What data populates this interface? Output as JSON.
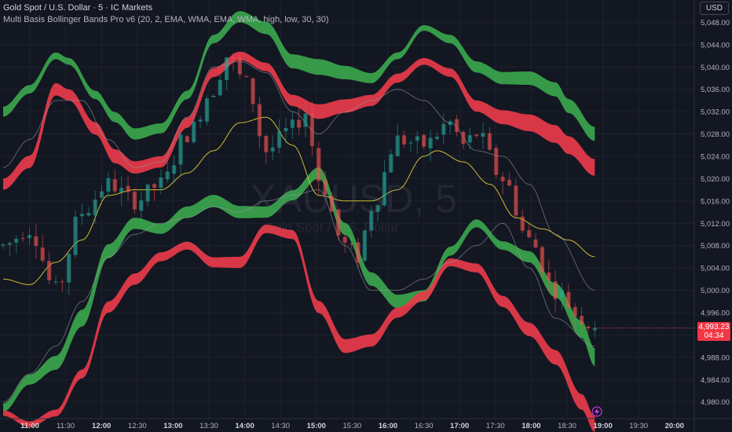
{
  "header": {
    "title": "Gold Spot / U.S. Dollar · 5 · IC Markets",
    "indicator": "Multi Basis Bollinger Bands Pro v6 (20, 2, EMA, WMA, EMA, WMA, high, low, 30, 30)"
  },
  "watermark": {
    "symbol": "XAUUSD, 5",
    "name": "Gold Spot / U.S. Dollar"
  },
  "currency_button": "USD",
  "price_tag": {
    "price": "4,993.23",
    "countdown": "04:34"
  },
  "colors": {
    "background": "#131722",
    "up": "#26a69a",
    "down": "#ef5350",
    "band_green": "#3aa64d",
    "band_red": "#e83b4a",
    "basis": "#d9c436",
    "inner": "#9598a1"
  },
  "chart_data": {
    "type": "candlestick",
    "title": "Gold Spot / U.S. Dollar · 5 · IC Markets",
    "ylim": [
      4977,
      5052
    ],
    "y_ticks": [
      "5,048.00",
      "5,044.00",
      "5,040.00",
      "5,036.00",
      "5,032.00",
      "5,028.00",
      "5,024.00",
      "5,020.00",
      "5,016.00",
      "5,012.00",
      "5,008.00",
      "5,004.00",
      "5,000.00",
      "4,996.00",
      "4,992.00",
      "4,988.00",
      "4,984.00",
      "4,980.00"
    ],
    "y_tick_values": [
      5048,
      5044,
      5040,
      5036,
      5032,
      5028,
      5024,
      5020,
      5016,
      5012,
      5008,
      5004,
      5000,
      4996,
      4992,
      4988,
      4984,
      4980
    ],
    "x_labels": [
      "11:00",
      "11:30",
      "12:00",
      "12:30",
      "13:00",
      "13:30",
      "14:00",
      "14:30",
      "15:00",
      "15:30",
      "16:00",
      "16:30",
      "17:00",
      "17:30",
      "18:00",
      "18:30",
      "19:00",
      "19:30",
      "20:00"
    ],
    "x_label_bold": [
      "11:00",
      "12:00",
      "13:00",
      "14:00",
      "15:00",
      "16:00",
      "17:00",
      "18:00",
      "19:00",
      "20:00"
    ],
    "last_price": 4993.23,
    "candle_count": 91,
    "candle_anchors": [
      [
        0,
        5008
      ],
      [
        4,
        5011
      ],
      [
        8,
        5000
      ],
      [
        12,
        5014
      ],
      [
        16,
        5019
      ],
      [
        20,
        5016
      ],
      [
        24,
        5019
      ],
      [
        28,
        5028
      ],
      [
        32,
        5036
      ],
      [
        34,
        5042
      ],
      [
        37,
        5037
      ],
      [
        40,
        5025
      ],
      [
        44,
        5029
      ],
      [
        46,
        5032
      ],
      [
        48,
        5020
      ],
      [
        52,
        5008
      ],
      [
        54,
        5006
      ],
      [
        56,
        5015
      ],
      [
        60,
        5027
      ],
      [
        64,
        5026
      ],
      [
        68,
        5030
      ],
      [
        70,
        5026
      ],
      [
        72,
        5028
      ],
      [
        76,
        5020
      ],
      [
        80,
        5009
      ],
      [
        84,
        5000
      ],
      [
        88,
        4995
      ],
      [
        90,
        4993
      ]
    ],
    "series": [
      {
        "name": "outer_upper",
        "style": "band",
        "color": "green",
        "x": [
          0,
          4,
          8,
          10,
          14,
          17,
          20,
          24,
          28,
          32,
          36,
          40,
          44,
          48,
          52,
          56,
          60,
          64,
          68,
          72,
          76,
          80,
          84,
          86,
          90
        ],
        "y": [
          5032,
          5036,
          5042,
          5041,
          5035,
          5031,
          5028,
          5029,
          5035,
          5045,
          5049,
          5047,
          5041,
          5040,
          5039,
          5038,
          5042,
          5047,
          5045,
          5040,
          5038,
          5038,
          5036,
          5033,
          5028
        ],
        "width": [
          1.8,
          1.5,
          1.2,
          1.2,
          1.5,
          1.8,
          2.0,
          1.8,
          1.5,
          1.5,
          2.0,
          2.2,
          2.5,
          2.8,
          2.4,
          1.8,
          1.2,
          1.0,
          1.5,
          2.0,
          2.2,
          2.4,
          2.5,
          2.5,
          2.5
        ]
      },
      {
        "name": "mid_upper",
        "style": "band",
        "color": "red",
        "x": [
          0,
          4,
          8,
          10,
          14,
          17,
          20,
          24,
          28,
          32,
          36,
          40,
          44,
          48,
          52,
          56,
          60,
          64,
          68,
          72,
          76,
          80,
          84,
          86,
          90
        ],
        "y": [
          5019,
          5023,
          5036,
          5035,
          5029,
          5024,
          5022,
          5023,
          5030,
          5039,
          5042,
          5040,
          5034,
          5032,
          5033,
          5034,
          5038,
          5041,
          5039,
          5033,
          5031,
          5030,
          5028,
          5026,
          5022
        ],
        "width": [
          2.0,
          2.2,
          2.2,
          2.0,
          2.2,
          2.5,
          2.2,
          2.0,
          1.8,
          1.6,
          1.5,
          1.5,
          2.0,
          2.6,
          2.4,
          2.0,
          1.6,
          1.2,
          1.5,
          2.0,
          2.5,
          3.0,
          3.2,
          3.2,
          3.0
        ]
      },
      {
        "name": "mid_lower",
        "style": "band",
        "color": "green",
        "x": [
          0,
          4,
          8,
          12,
          16,
          20,
          24,
          28,
          32,
          36,
          40,
          44,
          48,
          52,
          56,
          60,
          64,
          68,
          72,
          76,
          80,
          84,
          88,
          90
        ],
        "y": [
          4979,
          4984,
          4987,
          4995,
          5007,
          5012,
          5011,
          5014,
          5016,
          5014,
          5014,
          5017,
          5021,
          5011,
          5002,
          4998,
          4999,
          5007,
          5012,
          5008,
          5006,
          5000,
          4993,
          4988
        ],
        "width": [
          1.5,
          1.8,
          2.5,
          3.0,
          2.5,
          2.0,
          1.8,
          2.0,
          2.2,
          2.2,
          2.0,
          1.8,
          2.0,
          2.2,
          2.4,
          2.4,
          2.0,
          1.6,
          1.4,
          1.5,
          2.0,
          2.5,
          3.0,
          3.2
        ]
      },
      {
        "name": "outer_lower",
        "style": "band",
        "color": "red",
        "x": [
          0,
          4,
          8,
          12,
          16,
          20,
          24,
          28,
          32,
          36,
          40,
          44,
          48,
          52,
          56,
          60,
          64,
          68,
          72,
          76,
          80,
          84,
          88,
          90
        ],
        "y": [
          4978,
          4976,
          4978,
          4985,
          4997,
          5002,
          5006,
          5008,
          5005,
          5005,
          5011,
          5010,
          4997,
          4990,
          4991,
          4996,
          4999,
          5005,
          5004,
          4998,
          4993,
          4988,
          4980,
          4976
        ],
        "width": [
          1.0,
          1.0,
          1.2,
          1.6,
          2.0,
          2.0,
          1.6,
          1.4,
          1.8,
          2.0,
          1.5,
          1.6,
          2.2,
          2.5,
          2.2,
          1.8,
          1.6,
          1.4,
          1.6,
          2.0,
          2.4,
          2.6,
          2.8,
          2.8
        ]
      },
      {
        "name": "basis",
        "style": "line",
        "color": "yellow",
        "x": [
          0,
          4,
          8,
          12,
          16,
          20,
          24,
          28,
          32,
          36,
          40,
          44,
          48,
          52,
          56,
          60,
          64,
          66,
          70,
          74,
          78,
          82,
          86,
          90
        ],
        "y": [
          5002,
          5001,
          5005,
          5009,
          5017,
          5018,
          5018,
          5021,
          5025,
          5030,
          5031,
          5026,
          5017,
          5016,
          5016,
          5018,
          5024,
          5025,
          5023,
          5019,
          5013,
          5011,
          5009,
          5006
        ],
        "width": []
      },
      {
        "name": "inner_upper",
        "style": "line",
        "color": "gray",
        "x": [
          0,
          4,
          8,
          12,
          16,
          20,
          24,
          28,
          32,
          36,
          40,
          44,
          48,
          52,
          56,
          60,
          64,
          68,
          72,
          76,
          80,
          84,
          90
        ],
        "y": [
          5022,
          5027,
          5034,
          5034,
          5027,
          5022,
          5023,
          5031,
          5040,
          5041,
          5039,
          5032,
          5028,
          5032,
          5034,
          5036,
          5034,
          5030,
          5025,
          5024,
          5019,
          5010,
          5000
        ],
        "width": []
      },
      {
        "name": "inner_lower",
        "style": "line",
        "color": "gray",
        "x": [
          0,
          4,
          8,
          12,
          16,
          20,
          24,
          28,
          32,
          36,
          40,
          44,
          48,
          52,
          56,
          60,
          64,
          68,
          72,
          76,
          80,
          84,
          90
        ],
        "y": [
          4980,
          4985,
          4990,
          4998,
          5006,
          5010,
          5012,
          5013,
          5015,
          5014,
          5016,
          5017,
          5018,
          5008,
          5000,
          5000,
          5002,
          5005,
          5008,
          5012,
          5004,
          4995,
          4990
        ],
        "width": []
      }
    ]
  }
}
